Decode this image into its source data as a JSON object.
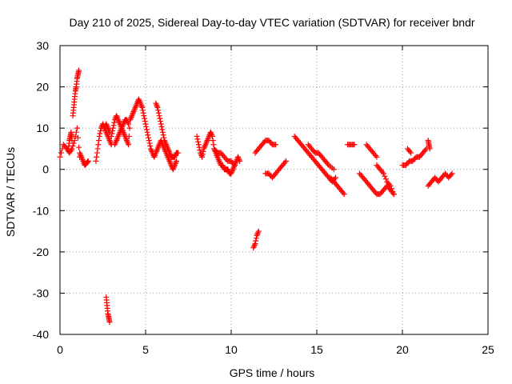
{
  "chart_data": {
    "type": "scatter",
    "title": "Day 210 of 2025, Sidereal Day-to-day VTEC variation (SDTVAR) for receiver bndr",
    "xlabel": "GPS time / hours",
    "ylabel": "SDTVAR / TECUs",
    "xlim": [
      0,
      25
    ],
    "ylim": [
      -40,
      30
    ],
    "xticks": [
      0,
      5,
      10,
      15,
      20,
      25
    ],
    "yticks": [
      -40,
      -30,
      -20,
      -10,
      0,
      10,
      20,
      30
    ],
    "grid": true,
    "marker": "+",
    "color": "#ff0000",
    "series": [
      {
        "name": "SDTVAR",
        "tracks": [
          {
            "x": [
              0.0,
              0.2,
              0.4,
              0.55,
              0.7,
              0.85,
              1.0,
              1.15
            ],
            "y": [
              3,
              6,
              5,
              4,
              5,
              7,
              10,
              3
            ]
          },
          {
            "x": [
              0.5,
              0.55,
              0.6,
              0.65,
              0.7
            ],
            "y": [
              5,
              7,
              8,
              9,
              7
            ]
          },
          {
            "x": [
              0.75,
              0.8,
              0.85,
              0.9,
              0.95,
              1.0,
              1.05,
              1.1
            ],
            "y": [
              13,
              15,
              17,
              19,
              20,
              22,
              23,
              24
            ]
          },
          {
            "x": [
              1.15,
              1.25,
              1.35,
              1.45,
              1.55,
              1.65
            ],
            "y": [
              4,
              3,
              2,
              1,
              1.5,
              2
            ]
          },
          {
            "x": [
              2.1,
              2.2,
              2.3,
              2.4,
              2.5,
              2.6,
              2.7,
              2.8,
              2.9,
              3.0
            ],
            "y": [
              2,
              5,
              8,
              10,
              11,
              10,
              9,
              8,
              7,
              6
            ]
          },
          {
            "x": [
              2.6,
              2.7,
              2.8,
              2.9
            ],
            "y": [
              10,
              11,
              10,
              9
            ]
          },
          {
            "x": [
              2.7,
              2.75,
              2.8,
              2.85,
              2.9
            ],
            "y": [
              -31,
              -33,
              -35,
              -36,
              -37
            ]
          },
          {
            "x": [
              3.0,
              3.1,
              3.2,
              3.3,
              3.4,
              3.5,
              3.6,
              3.7,
              3.8,
              3.9,
              4.0,
              4.1,
              4.2,
              4.3,
              4.4,
              4.5,
              4.6,
              4.7,
              4.8,
              4.9,
              5.0,
              5.1,
              5.2,
              5.3,
              5.4,
              5.5,
              5.6,
              5.7,
              5.8,
              5.9,
              6.0,
              6.1,
              6.2,
              6.3,
              6.4,
              6.5,
              6.6,
              6.7,
              6.8
            ],
            "y": [
              8,
              10,
              12,
              13,
              12,
              11,
              10,
              9,
              8,
              7,
              6,
              12,
              13,
              14,
              15,
              16,
              17,
              16,
              15,
              13,
              11,
              9,
              7,
              5,
              4,
              3,
              4,
              5,
              6,
              7,
              6,
              5,
              4,
              3,
              2,
              1,
              0,
              1,
              2
            ]
          },
          {
            "x": [
              3.2,
              3.3,
              3.4,
              3.5,
              3.6,
              3.7,
              3.8,
              3.9,
              4.0
            ],
            "y": [
              6,
              7,
              8,
              9,
              10,
              11,
              12,
              12,
              11
            ]
          },
          {
            "x": [
              5.6,
              5.7,
              5.8,
              5.9,
              6.0,
              6.1,
              6.2,
              6.3,
              6.4,
              6.5,
              6.6,
              6.7,
              6.8,
              6.9
            ],
            "y": [
              16,
              15,
              13,
              11,
              9,
              7,
              6,
              5,
              4,
              3,
              3,
              3,
              4,
              4
            ]
          },
          {
            "x": [
              8.0,
              8.1,
              8.2,
              8.3,
              8.4,
              8.5,
              8.6,
              8.7,
              8.8,
              8.9,
              9.0,
              9.1,
              9.2,
              9.3,
              9.4,
              9.5,
              9.6,
              9.7,
              9.8,
              9.9,
              10.0,
              10.1,
              10.2,
              10.3,
              10.4,
              10.5
            ],
            "y": [
              8,
              6,
              4,
              3,
              5,
              6,
              7,
              8,
              9,
              8,
              5,
              4,
              3,
              2,
              1,
              1,
              0,
              0,
              0,
              -1,
              -1,
              0,
              1,
              2,
              3,
              2
            ]
          },
          {
            "x": [
              9.0,
              9.2,
              9.4,
              9.6,
              9.8,
              10.0,
              10.2
            ],
            "y": [
              5,
              4,
              4,
              3,
              2,
              2,
              1
            ]
          },
          {
            "x": [
              11.3,
              11.4,
              11.5,
              11.6
            ],
            "y": [
              -19,
              -18,
              -16,
              -15
            ]
          },
          {
            "x": [
              11.4,
              11.6,
              11.8,
              12.0,
              12.2,
              12.4,
              12.6
            ],
            "y": [
              4,
              5,
              6,
              7,
              7,
              6,
              6
            ]
          },
          {
            "x": [
              12.0,
              12.2,
              12.4,
              12.6,
              12.8,
              13.0,
              13.2
            ],
            "y": [
              -1,
              -1,
              -2,
              -1,
              0,
              1,
              2
            ]
          },
          {
            "x": [
              13.7,
              13.9,
              14.1,
              14.3,
              14.5,
              14.7,
              14.9,
              15.1,
              15.3,
              15.5,
              15.7,
              15.9,
              16.1
            ],
            "y": [
              8,
              7,
              6,
              5,
              4,
              3,
              2,
              1,
              0,
              -1,
              -2,
              -3,
              -2
            ]
          },
          {
            "x": [
              14.5,
              14.7,
              14.9,
              15.1,
              15.3,
              15.5,
              15.7,
              16.0
            ],
            "y": [
              6,
              5,
              4,
              4,
              3,
              2,
              1,
              0
            ]
          },
          {
            "x": [
              15.8,
              16.0,
              16.2,
              16.4,
              16.6
            ],
            "y": [
              -2,
              -3,
              -4,
              -5,
              -6
            ]
          },
          {
            "x": [
              16.8,
              17.0,
              17.2
            ],
            "y": [
              6,
              6,
              6
            ]
          },
          {
            "x": [
              17.5,
              17.7,
              17.9,
              18.1,
              18.3,
              18.5,
              18.7,
              18.9,
              19.1,
              19.3,
              19.5
            ],
            "y": [
              -1,
              -2,
              -3,
              -4,
              -5,
              -6,
              -6,
              -5,
              -4,
              -5,
              -6
            ]
          },
          {
            "x": [
              17.9,
              18.1,
              18.3,
              18.5
            ],
            "y": [
              6,
              5,
              4,
              3
            ]
          },
          {
            "x": [
              18.5,
              18.7,
              18.9,
              19.1,
              19.3,
              19.5
            ],
            "y": [
              1,
              0,
              -1,
              -3,
              -4,
              -6
            ]
          },
          {
            "x": [
              20.0,
              20.2,
              20.4,
              20.6,
              20.8,
              21.0,
              21.2,
              21.4
            ],
            "y": [
              1,
              1,
              2,
              2,
              3,
              3,
              4,
              5
            ]
          },
          {
            "x": [
              20.3,
              20.5
            ],
            "y": [
              5,
              4
            ]
          },
          {
            "x": [
              21.5,
              21.55,
              21.6
            ],
            "y": [
              7,
              6,
              5
            ]
          },
          {
            "x": [
              21.5,
              21.7,
              21.9,
              22.1,
              22.3,
              22.5,
              22.7,
              22.9
            ],
            "y": [
              -4,
              -3,
              -2,
              -3,
              -2,
              -1,
              -2,
              -1
            ]
          }
        ]
      }
    ]
  }
}
